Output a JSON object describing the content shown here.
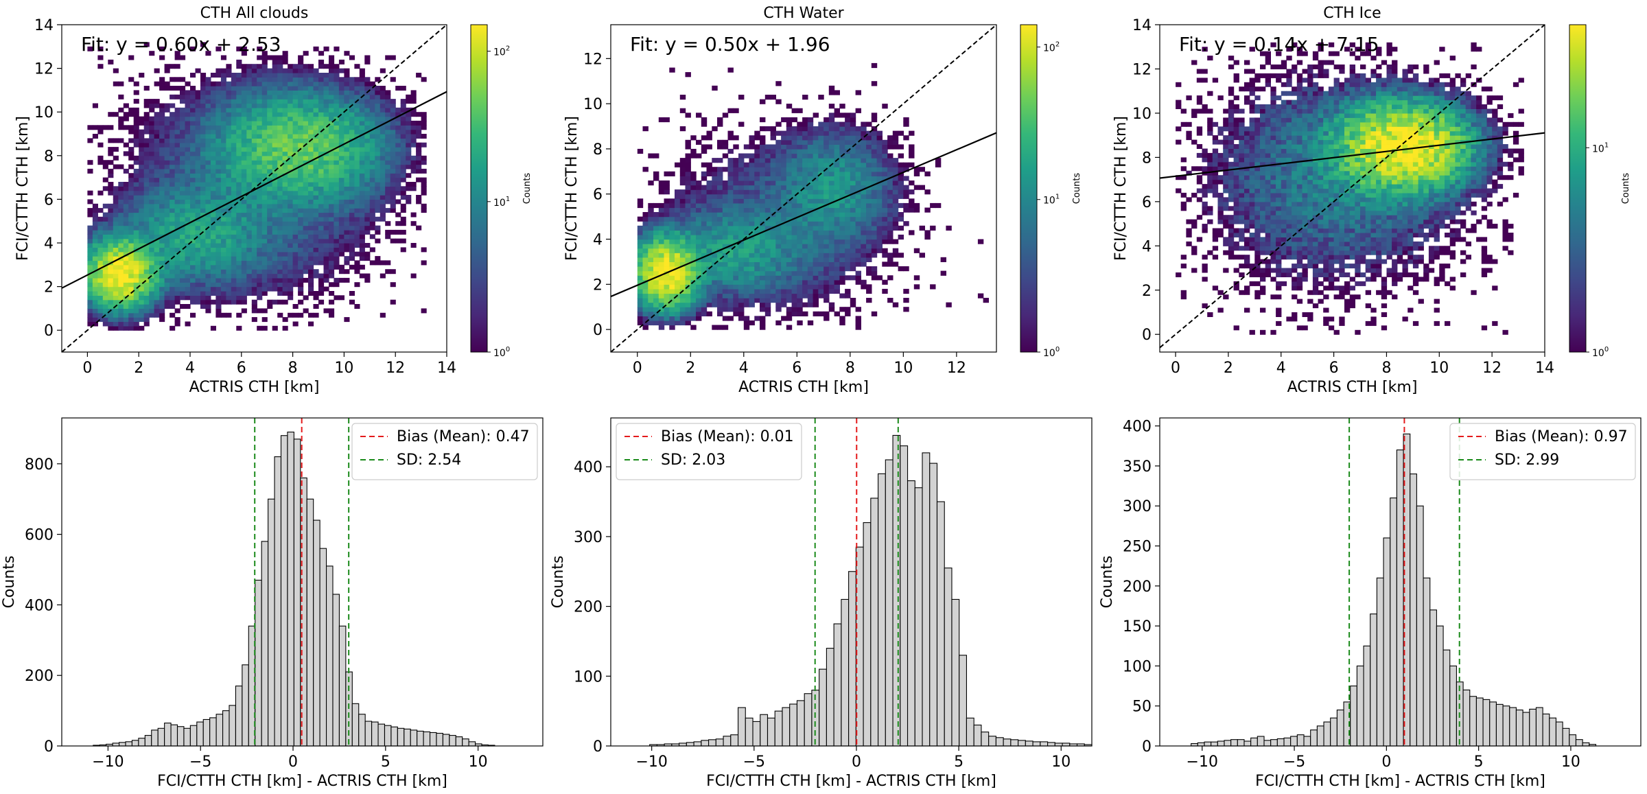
{
  "colormap": [
    "#440154",
    "#482878",
    "#3e4989",
    "#31688e",
    "#26828e",
    "#1f9e89",
    "#35b779",
    "#6ece58",
    "#b5de2b",
    "#fde725"
  ],
  "chart_data": [
    {
      "type": "heatmap",
      "title": "CTH All clouds",
      "xlabel": "ACTRIS CTH [km]",
      "ylabel": "FCI/CTTH CTH [km]",
      "xlim": [
        -1,
        14
      ],
      "ylim": [
        -1,
        14
      ],
      "xticks": [
        "0",
        "2",
        "4",
        "6",
        "8",
        "10",
        "12",
        "14"
      ],
      "yticks": [
        "0",
        "2",
        "4",
        "6",
        "8",
        "10",
        "12",
        "14"
      ],
      "fit_label": "Fit: y = 0.60x + 2.53",
      "fit": {
        "slope": 0.6,
        "intercept": 2.53
      },
      "one_to_one_line": true,
      "colorbar": {
        "label": "Counts",
        "scale": "log",
        "range": [
          1,
          150
        ],
        "ticks": [
          "10",
          "10",
          "10"
        ],
        "exponents": [
          "0",
          "1",
          "2"
        ]
      },
      "density_clusters": [
        {
          "x": 1.2,
          "y": 2.5,
          "sx": 0.7,
          "sy": 0.8,
          "peak": 150
        },
        {
          "x": 4.0,
          "y": 4.2,
          "sx": 1.6,
          "sy": 1.2,
          "peak": 18
        },
        {
          "x": 8.2,
          "y": 8.3,
          "sx": 1.7,
          "sy": 1.3,
          "peak": 45
        },
        {
          "x": 6.5,
          "y": 6.5,
          "sx": 2.8,
          "sy": 2.8,
          "peak": 6
        }
      ]
    },
    {
      "type": "heatmap",
      "title": "CTH Water",
      "xlabel": "ACTRIS CTH [km]",
      "ylabel": "FCI/CTTH CTH [km]",
      "xlim": [
        -1,
        13.5
      ],
      "ylim": [
        -1,
        13.5
      ],
      "xticks": [
        "0",
        "2",
        "4",
        "6",
        "8",
        "10",
        "12"
      ],
      "yticks": [
        "0",
        "2",
        "4",
        "6",
        "8",
        "10",
        "12"
      ],
      "fit_label": "Fit: y = 0.50x + 1.96",
      "fit": {
        "slope": 0.5,
        "intercept": 1.96
      },
      "one_to_one_line": true,
      "colorbar": {
        "label": "Counts",
        "scale": "log",
        "range": [
          1,
          140
        ],
        "ticks": [
          "10",
          "10",
          "10"
        ],
        "exponents": [
          "0",
          "1",
          "2"
        ]
      },
      "density_clusters": [
        {
          "x": 1.0,
          "y": 2.4,
          "sx": 0.6,
          "sy": 0.8,
          "peak": 140
        },
        {
          "x": 3.5,
          "y": 3.3,
          "sx": 1.5,
          "sy": 1.0,
          "peak": 14
        },
        {
          "x": 7.3,
          "y": 6.2,
          "sx": 1.2,
          "sy": 1.4,
          "peak": 12
        },
        {
          "x": 5.0,
          "y": 4.5,
          "sx": 2.5,
          "sy": 2.3,
          "peak": 4
        }
      ]
    },
    {
      "type": "heatmap",
      "title": "CTH Ice",
      "xlabel": "ACTRIS CTH [km]",
      "ylabel": "FCI/CTTH CTH [km]",
      "xlim": [
        -0.6,
        14
      ],
      "ylim": [
        -0.8,
        14
      ],
      "xticks": [
        "0",
        "2",
        "4",
        "6",
        "8",
        "10",
        "12",
        "14"
      ],
      "yticks": [
        "0",
        "2",
        "4",
        "6",
        "8",
        "10",
        "12",
        "14"
      ],
      "fit_label": "Fit: y = 0.14x + 7.15",
      "fit": {
        "slope": 0.14,
        "intercept": 7.15
      },
      "one_to_one_line": true,
      "colorbar": {
        "label": "Counts",
        "scale": "log",
        "range": [
          1,
          40
        ],
        "ticks": [
          "10",
          "10"
        ],
        "exponents": [
          "0",
          "1"
        ]
      },
      "density_clusters": [
        {
          "x": 8.6,
          "y": 8.4,
          "sx": 1.4,
          "sy": 1.1,
          "peak": 40
        },
        {
          "x": 6.0,
          "y": 7.0,
          "sx": 3.0,
          "sy": 2.8,
          "peak": 5
        }
      ]
    },
    {
      "type": "bar",
      "subtype": "histogram",
      "xlabel": "FCI/CTTH CTH [km] - ACTRIS CTH [km]",
      "ylabel": "Counts",
      "xlim": [
        -12.5,
        13.5
      ],
      "ylim": [
        0,
        930
      ],
      "xticks": [
        "−10",
        "−5",
        "0",
        "5",
        "10"
      ],
      "yticks": [
        "0",
        "200",
        "400",
        "600",
        "800"
      ],
      "bin_start": -10.8,
      "bin_width": 0.35,
      "counts": [
        2,
        3,
        5,
        8,
        10,
        12,
        16,
        22,
        30,
        45,
        50,
        65,
        60,
        55,
        50,
        58,
        68,
        75,
        80,
        90,
        100,
        115,
        170,
        230,
        340,
        470,
        580,
        700,
        820,
        880,
        890,
        870,
        760,
        700,
        640,
        560,
        510,
        430,
        340,
        210,
        120,
        90,
        70,
        68,
        62,
        58,
        54,
        50,
        48,
        45,
        42,
        40,
        38,
        36,
        33,
        30,
        26,
        20,
        12,
        6,
        3,
        2
      ],
      "mean_line": 0.47,
      "sd_lines": [
        -2.07,
        3.01
      ],
      "legend": [
        "Bias (Mean): 0.47",
        "SD: 2.54"
      ],
      "legend_position": "top-right"
    },
    {
      "type": "bar",
      "subtype": "histogram",
      "xlabel": "FCI/CTTH CTH [km] - ACTRIS CTH [km]",
      "ylabel": "Counts",
      "xlim": [
        -12,
        11.5
      ],
      "ylim": [
        0,
        470
      ],
      "xticks": [
        "−10",
        "−5",
        "0",
        "5",
        "10"
      ],
      "yticks": [
        "0",
        "100",
        "200",
        "300",
        "400"
      ],
      "bin_start": -10.1,
      "bin_width": 0.36,
      "counts": [
        2,
        2,
        3,
        3,
        4,
        5,
        6,
        8,
        9,
        10,
        14,
        16,
        55,
        40,
        35,
        45,
        40,
        50,
        55,
        60,
        65,
        75,
        80,
        110,
        140,
        175,
        210,
        250,
        285,
        320,
        355,
        390,
        410,
        445,
        430,
        380,
        370,
        420,
        405,
        350,
        255,
        210,
        130,
        40,
        30,
        20,
        14,
        12,
        10,
        9,
        8,
        7,
        6,
        6,
        5,
        4,
        4,
        3,
        3,
        2
      ],
      "mean_line": 0.01,
      "sd_lines": [
        -2.02,
        2.04
      ],
      "legend": [
        "Bias (Mean): 0.01",
        "SD: 2.03"
      ],
      "legend_position": "top-left"
    },
    {
      "type": "bar",
      "subtype": "histogram",
      "xlabel": "FCI/CTTH CTH [km] - ACTRIS CTH [km]",
      "ylabel": "Counts",
      "xlim": [
        -12.3,
        13.8
      ],
      "ylim": [
        0,
        410
      ],
      "xticks": [
        "−10",
        "−5",
        "0",
        "5",
        "10"
      ],
      "yticks": [
        "0",
        "50",
        "100",
        "150",
        "200",
        "250",
        "300",
        "350",
        "400"
      ],
      "bin_start": -10.6,
      "bin_width": 0.36,
      "counts": [
        3,
        4,
        5,
        5,
        6,
        7,
        8,
        8,
        6,
        10,
        12,
        7,
        8,
        9,
        10,
        12,
        14,
        12,
        20,
        25,
        30,
        35,
        45,
        55,
        75,
        100,
        125,
        165,
        210,
        260,
        310,
        370,
        390,
        340,
        300,
        210,
        170,
        150,
        120,
        100,
        80,
        70,
        62,
        60,
        58,
        55,
        52,
        50,
        48,
        45,
        42,
        46,
        48,
        40,
        35,
        30,
        22,
        14,
        8,
        4,
        2
      ],
      "mean_line": 0.97,
      "sd_lines": [
        -2.02,
        3.96
      ],
      "legend": [
        "Bias (Mean): 0.97",
        "SD: 2.99"
      ],
      "legend_position": "top-right"
    }
  ]
}
